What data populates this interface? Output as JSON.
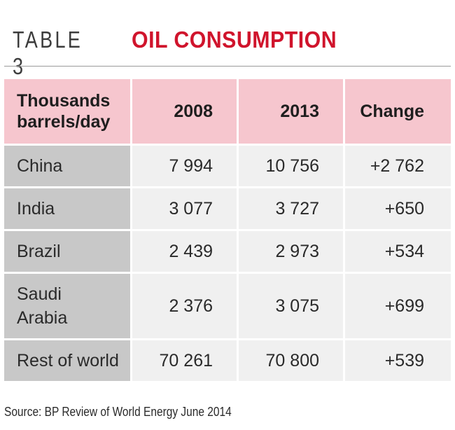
{
  "heading": {
    "table_number": "TABLE 3",
    "title": "OIL CONSUMPTION"
  },
  "table": {
    "columns": [
      "Thousands barrels/day",
      "2008",
      "2013",
      "Change"
    ],
    "rows": [
      {
        "region": "China",
        "y2008": "7 994",
        "y2013": "10 756",
        "change": "+2 762"
      },
      {
        "region": "India",
        "y2008": "3 077",
        "y2013": "3 727",
        "change": "+650"
      },
      {
        "region": "Brazil",
        "y2008": "2 439",
        "y2013": "2 973",
        "change": "+534"
      },
      {
        "region": "Saudi Arabia",
        "y2008": "2 376",
        "y2013": "3 075",
        "change": "+699"
      },
      {
        "region": "Rest of world",
        "y2008": "70 261",
        "y2013": "70 800",
        "change": "+539"
      }
    ]
  },
  "source": "Source: BP Review of World Energy June 2014",
  "colors": {
    "title_red": "#d0142c",
    "header_pink": "#f6c6ce",
    "name_cell_grey": "#c8c8c8",
    "value_cell_grey": "#f0f0f0"
  }
}
